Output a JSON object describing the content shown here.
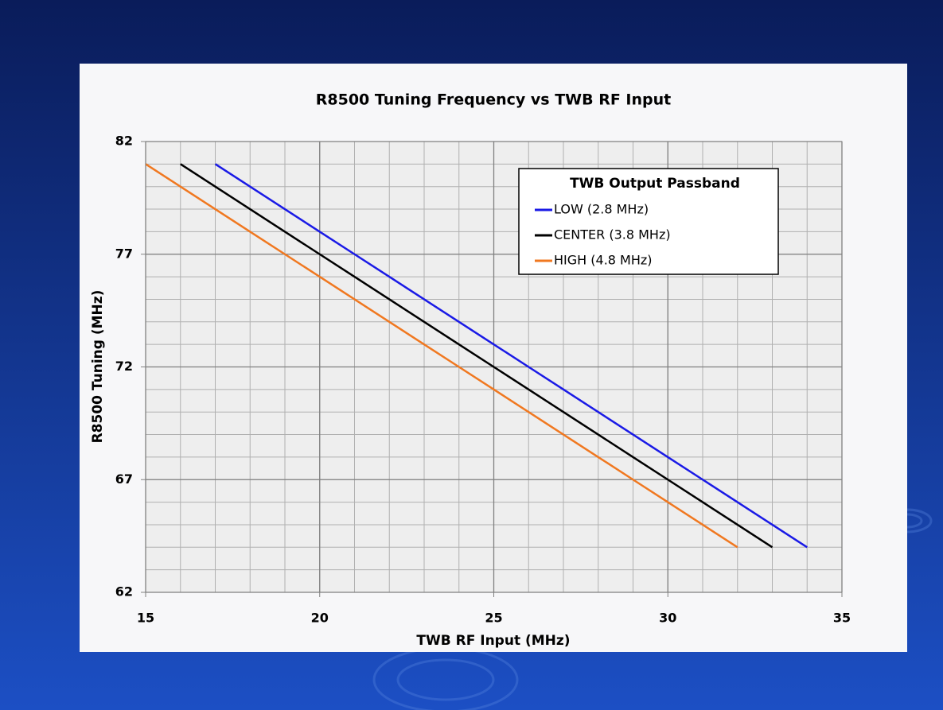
{
  "chart_data": {
    "type": "line",
    "title": "R8500 Tuning Frequency vs TWB RF Input",
    "x_label": "TWB RF Input (MHz)",
    "y_label": "R8500 Tuning (MHz)",
    "xlim": [
      15,
      35
    ],
    "xticks": [
      15,
      20,
      25,
      30,
      35
    ],
    "ylim": [
      62,
      82
    ],
    "yticks": [
      62,
      67,
      72,
      77,
      82
    ],
    "x_minor_step": 1,
    "y_minor_step": 1,
    "grid": true,
    "legend_title": "TWB Output Passband",
    "legend_position": "upper right",
    "series": [
      {
        "name": "LOW (2.8 MHz)",
        "color": "#1a1ae6",
        "x": [
          17,
          18,
          19,
          20,
          21,
          22,
          23,
          24,
          25,
          26,
          27,
          28,
          29,
          30,
          31,
          32,
          33,
          34
        ],
        "values": [
          81,
          80,
          79,
          78,
          77,
          76,
          75,
          74,
          73,
          72,
          71,
          70,
          69,
          68,
          67,
          66,
          65,
          64
        ]
      },
      {
        "name": "CENTER (3.8 MHz)",
        "color": "#000000",
        "x": [
          16,
          17,
          18,
          19,
          20,
          21,
          22,
          23,
          24,
          25,
          26,
          27,
          28,
          29,
          30,
          31,
          32,
          33
        ],
        "values": [
          81,
          80,
          79,
          78,
          77,
          76,
          75,
          74,
          73,
          72,
          71,
          70,
          69,
          68,
          67,
          66,
          65,
          64
        ]
      },
      {
        "name": "HIGH (4.8 MHz)",
        "color": "#f07820",
        "x": [
          15,
          16,
          17,
          18,
          19,
          20,
          21,
          22,
          23,
          24,
          25,
          26,
          27,
          28,
          29,
          30,
          31,
          32
        ],
        "values": [
          81,
          80,
          79,
          78,
          77,
          76,
          75,
          74,
          73,
          72,
          71,
          70,
          69,
          68,
          67,
          66,
          65,
          64
        ]
      }
    ]
  }
}
